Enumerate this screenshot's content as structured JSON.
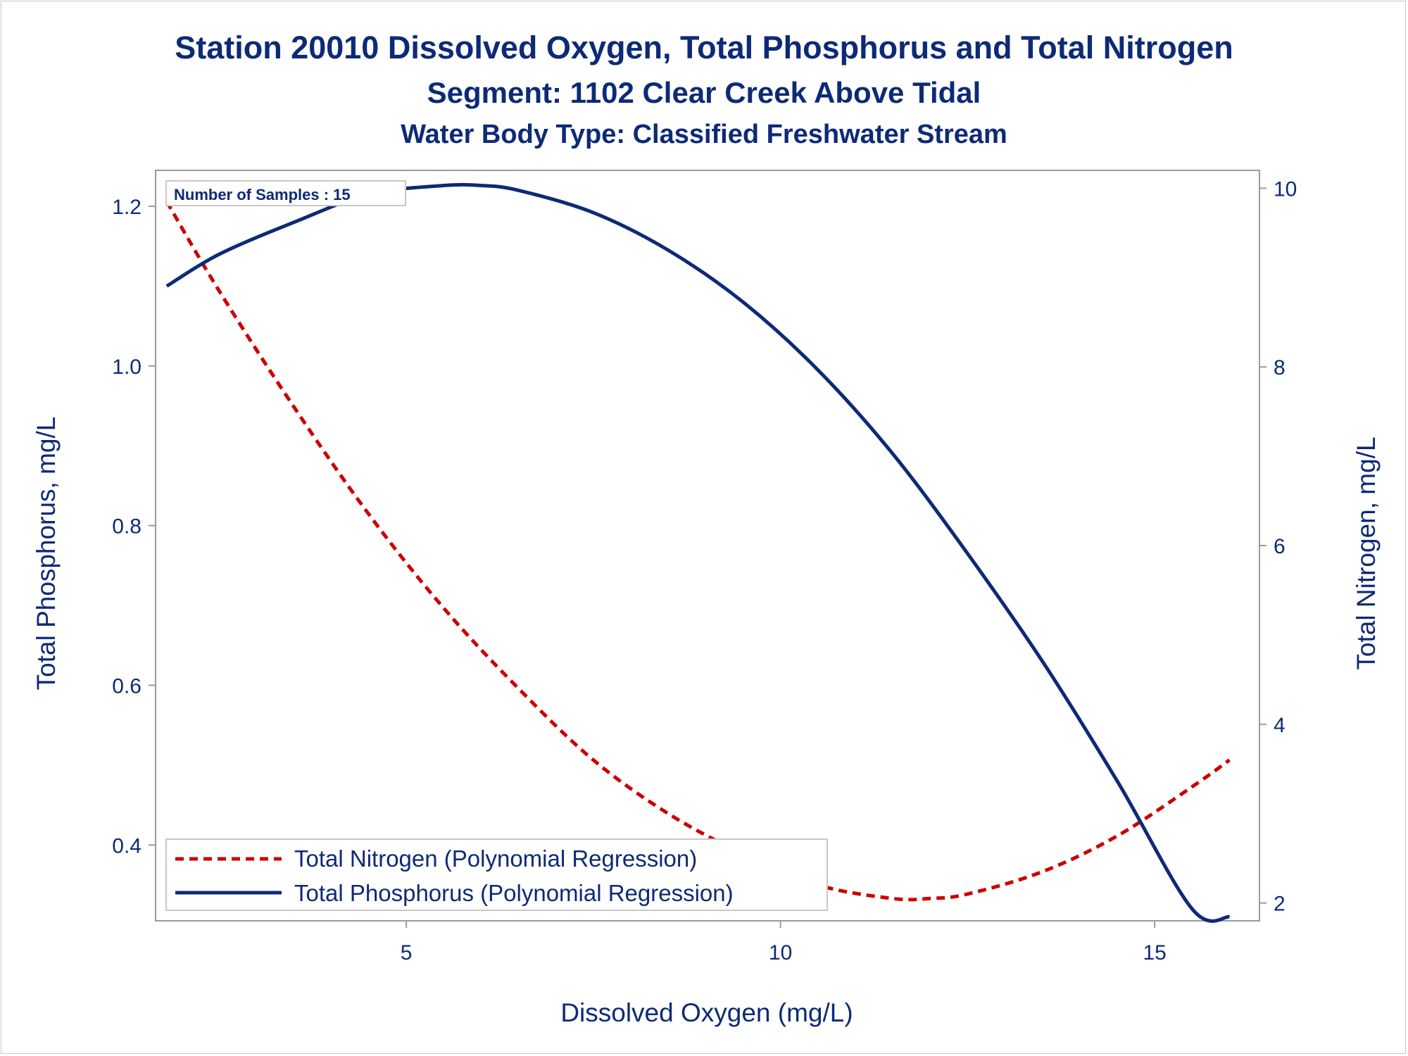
{
  "title": {
    "line1": "Station 20010  Dissolved Oxygen, Total Phosphorus and Total Nitrogen",
    "line2": "Segment: 1102  Clear Creek Above Tidal",
    "line3": "Water Body Type: Classified Freshwater Stream"
  },
  "inset_label": "Number of Samples : 15",
  "colors": {
    "text": "#0d2a76",
    "phosphorus": "#0d2a76",
    "nitrogen": "#cc0000",
    "frame": "#9a9a9a"
  },
  "chart_data": {
    "type": "line",
    "xlabel": "Dissolved Oxygen (mg/L)",
    "ylabel_left": "Total Phosphorus, mg/L",
    "ylabel_right": "Total Nitrogen, mg/L",
    "xlim": [
      1.65,
      16.4
    ],
    "ylim_left": [
      0.305,
      1.245
    ],
    "ylim_right": [
      1.8,
      10.2
    ],
    "xticks": [
      5,
      10,
      15
    ],
    "yticks_left": [
      0.4,
      0.6,
      0.8,
      1.0,
      1.2
    ],
    "yticks_right": [
      2,
      4,
      6,
      8,
      10
    ],
    "ytick_labels_left": [
      "0.4",
      "0.6",
      "0.8",
      "1.0",
      "1.2"
    ],
    "grid": false,
    "legend_position": "bottom-left",
    "series": [
      {
        "name": "Total Nitrogen (Polynomial Regression)",
        "axis": "right",
        "style": "dashed",
        "color": "#cc0000",
        "x": [
          1.8,
          2.5,
          3.5,
          4.5,
          5.5,
          6.5,
          7.5,
          8.5,
          9.5,
          10.5,
          11.5,
          12.0,
          12.5,
          13.5,
          14.5,
          15.5,
          16.0
        ],
        "y": [
          9.85,
          8.85,
          7.55,
          6.35,
          5.3,
          4.4,
          3.6,
          3.0,
          2.55,
          2.2,
          2.05,
          2.05,
          2.1,
          2.35,
          2.75,
          3.3,
          3.6
        ]
      },
      {
        "name": "Total Phosphorus (Polynomial Regression)",
        "axis": "left",
        "style": "solid",
        "color": "#0d2a76",
        "x": [
          1.8,
          2.5,
          3.5,
          4.5,
          5.5,
          6.0,
          6.5,
          7.5,
          8.5,
          9.5,
          10.5,
          11.5,
          12.5,
          13.5,
          14.5,
          15.5,
          16.0
        ],
        "y": [
          1.1,
          1.14,
          1.18,
          1.215,
          1.226,
          1.226,
          1.22,
          1.192,
          1.145,
          1.08,
          0.995,
          0.89,
          0.765,
          0.63,
          0.48,
          0.32,
          0.31
        ]
      }
    ]
  }
}
